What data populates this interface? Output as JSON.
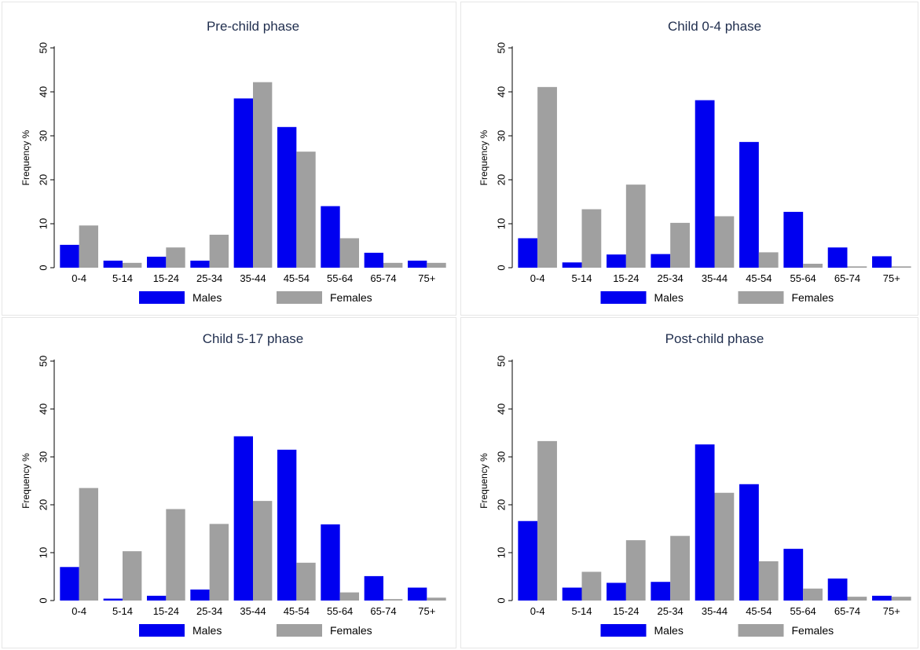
{
  "colors": {
    "males": "#0000f0",
    "females": "#a0a0a0"
  },
  "chart_data": [
    {
      "type": "bar",
      "title": "Pre-child phase",
      "ylabel": "Frequency %",
      "ylim": [
        0,
        50
      ],
      "yticks": [
        "0",
        "10",
        "20",
        "30",
        "40",
        "50"
      ],
      "categories": [
        "0-4",
        "5-14",
        "15-24",
        "25-34",
        "35-44",
        "45-54",
        "55-64",
        "65-74",
        "75+"
      ],
      "series": [
        {
          "name": "Males",
          "values": [
            5.2,
            1.6,
            2.5,
            1.6,
            38.5,
            32.0,
            14.0,
            3.4,
            1.6
          ]
        },
        {
          "name": "Females",
          "values": [
            9.6,
            1.1,
            4.6,
            7.5,
            42.2,
            26.4,
            6.7,
            1.1,
            1.1
          ]
        }
      ],
      "legend": "bottom"
    },
    {
      "type": "bar",
      "title": "Child 0-4 phase",
      "ylabel": "Frequency %",
      "ylim": [
        0,
        50
      ],
      "yticks": [
        "0",
        "10",
        "20",
        "30",
        "40",
        "50"
      ],
      "categories": [
        "0-4",
        "5-14",
        "15-24",
        "25-34",
        "35-44",
        "45-54",
        "55-64",
        "65-74",
        "75+"
      ],
      "series": [
        {
          "name": "Males",
          "values": [
            6.7,
            1.2,
            3.0,
            3.1,
            38.1,
            28.6,
            12.7,
            4.6,
            2.6
          ]
        },
        {
          "name": "Females",
          "values": [
            41.1,
            13.3,
            18.9,
            10.2,
            11.7,
            3.5,
            0.9,
            0.3,
            0.3
          ]
        }
      ],
      "legend": "bottom"
    },
    {
      "type": "bar",
      "title": "Child 5-17 phase",
      "ylabel": "Frequency %",
      "ylim": [
        0,
        50
      ],
      "yticks": [
        "0",
        "10",
        "20",
        "30",
        "40",
        "50"
      ],
      "categories": [
        "0-4",
        "5-14",
        "15-24",
        "25-34",
        "35-44",
        "45-54",
        "55-64",
        "65-74",
        "75+"
      ],
      "series": [
        {
          "name": "Males",
          "values": [
            7.0,
            0.4,
            1.0,
            2.3,
            34.3,
            31.5,
            15.9,
            5.1,
            2.7
          ]
        },
        {
          "name": "Females",
          "values": [
            23.5,
            10.3,
            19.1,
            16.0,
            20.8,
            7.9,
            1.7,
            0.3,
            0.6
          ]
        }
      ],
      "legend": "bottom"
    },
    {
      "type": "bar",
      "title": "Post-child phase",
      "ylabel": "Frequency %",
      "ylim": [
        0,
        50
      ],
      "yticks": [
        "0",
        "10",
        "20",
        "30",
        "40",
        "50"
      ],
      "categories": [
        "0-4",
        "5-14",
        "15-24",
        "25-34",
        "35-44",
        "45-54",
        "55-64",
        "65-74",
        "75+"
      ],
      "series": [
        {
          "name": "Males",
          "values": [
            16.6,
            2.7,
            3.7,
            3.9,
            32.6,
            24.3,
            10.8,
            4.6,
            1.0
          ]
        },
        {
          "name": "Females",
          "values": [
            33.3,
            6.0,
            12.6,
            13.5,
            22.5,
            8.2,
            2.5,
            0.8,
            0.8
          ]
        }
      ],
      "legend": "bottom"
    }
  ]
}
